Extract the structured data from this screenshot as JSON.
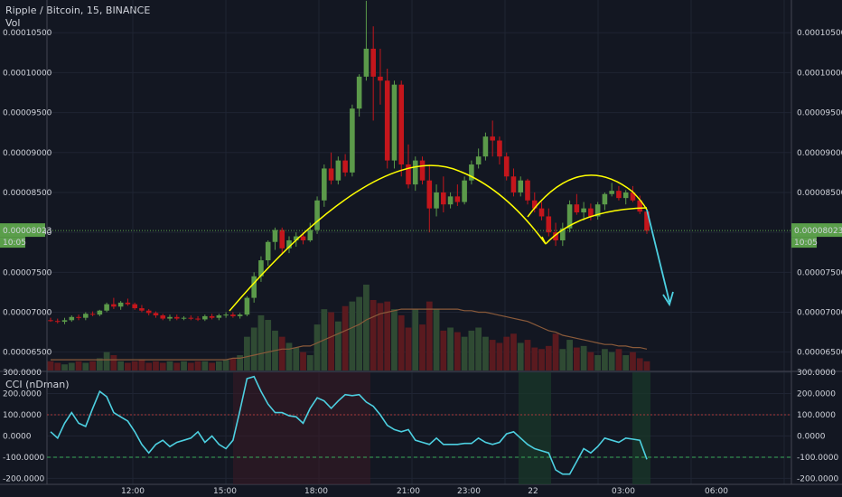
{
  "header": {
    "title": "Ripple / Bitcoin, 15, BINANCE",
    "volume_label": "Vol",
    "cci_label": "CCI (nDman)"
  },
  "price_axis": {
    "ticks": [
      "0.00010500",
      "0.00010000",
      "0.00009500",
      "0.00009000",
      "0.00008500",
      "0.00008000",
      "0.00007500",
      "0.00007000",
      "0.00006500"
    ],
    "tick_values": [
      0.000105,
      0.0001,
      9.5e-05,
      9e-05,
      8.5e-05,
      8e-05,
      7.5e-05,
      7e-05,
      6.5e-05
    ],
    "range": [
      6.27e-05,
      0.0001091
    ],
    "current_price": "0.00008023",
    "current_time": "10:05"
  },
  "cci_axis": {
    "ticks": [
      "300.0000",
      "200.0000",
      "100.0000",
      "0.0000",
      "-100.0000",
      "-200.0000"
    ],
    "tick_values": [
      300,
      200,
      100,
      0,
      -100,
      -200
    ],
    "range": [
      -228,
      300
    ],
    "levels": [
      100,
      -100
    ]
  },
  "time_axis": {
    "labels": [
      "12:00",
      "15:00",
      "18:00",
      "21:00",
      "23:00",
      "22",
      "03:00",
      "06:00"
    ]
  },
  "colors": {
    "up": "#5b9a4a",
    "down": "#c4161c",
    "pattern": "#ffff00",
    "arrow": "#4dd0e1",
    "cci": "#4dd0e1",
    "price_badge": "#5a9e4a"
  },
  "chart_data": {
    "type": "candlestick",
    "title": "Ripple / Bitcoin, 15, BINANCE",
    "candles": [
      [
        6.9e-05,
        6.93e-05,
        6.88e-05,
        6.89e-05
      ],
      [
        6.89e-05,
        6.92e-05,
        6.86e-05,
        6.88e-05
      ],
      [
        6.88e-05,
        6.93e-05,
        6.85e-05,
        6.9e-05
      ],
      [
        6.9e-05,
        6.96e-05,
        6.88e-05,
        6.94e-05
      ],
      [
        6.94e-05,
        6.97e-05,
        6.9e-05,
        6.93e-05
      ],
      [
        6.93e-05,
        7e-05,
        6.9e-05,
        6.98e-05
      ],
      [
        6.98e-05,
        7.01e-05,
        6.95e-05,
        6.97e-05
      ],
      [
        6.97e-05,
        7.03e-05,
        6.95e-05,
        7.02e-05
      ],
      [
        7.02e-05,
        7.12e-05,
        7e-05,
        7.1e-05
      ],
      [
        7.1e-05,
        7.18e-05,
        7.04e-05,
        7.07e-05
      ],
      [
        7.07e-05,
        7.14e-05,
        7.03e-05,
        7.12e-05
      ],
      [
        7.12e-05,
        7.17e-05,
        7.08e-05,
        7.1e-05
      ],
      [
        7.1e-05,
        7.12e-05,
        7.03e-05,
        7.05e-05
      ],
      [
        7.05e-05,
        7.09e-05,
        7e-05,
        7.02e-05
      ],
      [
        7.02e-05,
        7.04e-05,
        6.96e-05,
        6.99e-05
      ],
      [
        6.99e-05,
        7.01e-05,
        6.93e-05,
        6.96e-05
      ],
      [
        6.96e-05,
        6.98e-05,
        6.9e-05,
        6.92e-05
      ],
      [
        6.92e-05,
        6.97e-05,
        6.89e-05,
        6.94e-05
      ],
      [
        6.94e-05,
        6.97e-05,
        6.9e-05,
        6.92e-05
      ],
      [
        6.92e-05,
        6.95e-05,
        6.9e-05,
        6.93e-05
      ],
      [
        6.93e-05,
        6.96e-05,
        6.9e-05,
        6.92e-05
      ],
      [
        6.92e-05,
        6.95e-05,
        6.89e-05,
        6.91e-05
      ],
      [
        6.91e-05,
        6.97e-05,
        6.89e-05,
        6.95e-05
      ],
      [
        6.95e-05,
        6.98e-05,
        6.91e-05,
        6.93e-05
      ],
      [
        6.93e-05,
        6.98e-05,
        6.9e-05,
        6.96e-05
      ],
      [
        6.96e-05,
        7e-05,
        6.93e-05,
        6.97e-05
      ],
      [
        6.97e-05,
        7e-05,
        6.93e-05,
        6.95e-05
      ],
      [
        6.95e-05,
        6.99e-05,
        6.92e-05,
        6.97e-05
      ],
      [
        6.97e-05,
        7.2e-05,
        6.95e-05,
        7.18e-05
      ],
      [
        7.18e-05,
        7.5e-05,
        7.12e-05,
        7.45e-05
      ],
      [
        7.45e-05,
        7.7e-05,
        7.38e-05,
        7.65e-05
      ],
      [
        7.65e-05,
        7.9e-05,
        7.58e-05,
        7.88e-05
      ],
      [
        7.88e-05,
        8.06e-05,
        7.78e-05,
        8.03e-05
      ],
      [
        8.03e-05,
        8.06e-05,
        7.72e-05,
        7.8e-05
      ],
      [
        7.8e-05,
        7.95e-05,
        7.74e-05,
        7.9e-05
      ],
      [
        7.9e-05,
        8e-05,
        7.82e-05,
        7.95e-05
      ],
      [
        7.95e-05,
        8e-05,
        7.85e-05,
        7.9e-05
      ],
      [
        7.9e-05,
        8.12e-05,
        7.88e-05,
        8.03e-05
      ],
      [
        8.03e-05,
        8.45e-05,
        7.98e-05,
        8.4e-05
      ],
      [
        8.4e-05,
        8.85e-05,
        8.32e-05,
        8.8e-05
      ],
      [
        8.8e-05,
        9e-05,
        8.6e-05,
        8.65e-05
      ],
      [
        8.65e-05,
        8.95e-05,
        8.6e-05,
        8.9e-05
      ],
      [
        8.9e-05,
        8.98e-05,
        8.7e-05,
        8.75e-05
      ],
      [
        8.75e-05,
        9.6e-05,
        8.7e-05,
        9.55e-05
      ],
      [
        9.55e-05,
        9.98e-05,
        9.45e-05,
        9.95e-05
      ],
      [
        9.95e-05,
        0.000109,
        9.9e-05,
        0.000103
      ],
      [
        0.000103,
        0.0001058,
        9.4e-05,
        9.95e-05
      ],
      [
        9.95e-05,
        0.000103,
        9.6e-05,
        9.9e-05
      ],
      [
        9.9e-05,
        0.0001005,
        8.8e-05,
        8.9e-05
      ],
      [
        8.9e-05,
        9.9e-05,
        8.8e-05,
        9.85e-05
      ],
      [
        9.85e-05,
        9.9e-05,
        8.7e-05,
        8.85e-05
      ],
      [
        8.85e-05,
        9.1e-05,
        8.55e-05,
        8.6e-05
      ],
      [
        8.6e-05,
        8.95e-05,
        8.52e-05,
        8.9e-05
      ],
      [
        8.9e-05,
        8.95e-05,
        8.6e-05,
        8.65e-05
      ],
      [
        8.65e-05,
        8.85e-05,
        8e-05,
        8.3e-05
      ],
      [
        8.3e-05,
        8.6e-05,
        8.2e-05,
        8.5e-05
      ],
      [
        8.5e-05,
        8.7e-05,
        8.25e-05,
        8.35e-05
      ],
      [
        8.35e-05,
        8.5e-05,
        8.3e-05,
        8.45e-05
      ],
      [
        8.45e-05,
        8.6e-05,
        8.33e-05,
        8.38e-05
      ],
      [
        8.38e-05,
        8.7e-05,
        8.35e-05,
        8.65e-05
      ],
      [
        8.65e-05,
        8.9e-05,
        8.6e-05,
        8.85e-05
      ],
      [
        8.85e-05,
        9.05e-05,
        8.8e-05,
        8.95e-05
      ],
      [
        8.95e-05,
        9.25e-05,
        8.9e-05,
        9.2e-05
      ],
      [
        9.2e-05,
        9.4e-05,
        8.95e-05,
        9.15e-05
      ],
      [
        9.15e-05,
        9.2e-05,
        8.85e-05,
        8.95e-05
      ],
      [
        8.95e-05,
        9e-05,
        8.65e-05,
        8.7e-05
      ],
      [
        8.7e-05,
        8.8e-05,
        8.45e-05,
        8.5e-05
      ],
      [
        8.5e-05,
        8.7e-05,
        8.45e-05,
        8.65e-05
      ],
      [
        8.65e-05,
        8.67e-05,
        8.35e-05,
        8.4e-05
      ],
      [
        8.4e-05,
        8.5e-05,
        8.25e-05,
        8.3e-05
      ],
      [
        8.3e-05,
        8.38e-05,
        8.15e-05,
        8.2e-05
      ],
      [
        8.2e-05,
        8.3e-05,
        7.95e-05,
        8e-05
      ],
      [
        8e-05,
        8.12e-05,
        7.83e-05,
        7.9e-05
      ],
      [
        7.9e-05,
        8.12e-05,
        7.83e-05,
        8.05e-05
      ],
      [
        8.05e-05,
        8.4e-05,
        8e-05,
        8.35e-05
      ],
      [
        8.35e-05,
        8.48e-05,
        8.22e-05,
        8.25e-05
      ],
      [
        8.25e-05,
        8.38e-05,
        8.15e-05,
        8.3e-05
      ],
      [
        8.3e-05,
        8.36e-05,
        8.15e-05,
        8.2e-05
      ],
      [
        8.2e-05,
        8.38e-05,
        8.16e-05,
        8.35e-05
      ],
      [
        8.35e-05,
        8.5e-05,
        8.28e-05,
        8.48e-05
      ],
      [
        8.48e-05,
        8.62e-05,
        8.45e-05,
        8.52e-05
      ],
      [
        8.52e-05,
        8.58e-05,
        8.4e-05,
        8.43e-05
      ],
      [
        8.43e-05,
        8.53e-05,
        8.35e-05,
        8.5e-05
      ],
      [
        8.5e-05,
        8.58e-05,
        8.38e-05,
        8.4e-05
      ],
      [
        8.4e-05,
        8.46e-05,
        8.23e-05,
        8.26e-05
      ],
      [
        8.26e-05,
        8.3e-05,
        7.98e-05,
        8.02e-05
      ]
    ],
    "volume": [
      6,
      5,
      4,
      5,
      6,
      5,
      6,
      8,
      12,
      10,
      6,
      5,
      6,
      7,
      5,
      6,
      5,
      6,
      5,
      6,
      5,
      6,
      6,
      5,
      6,
      7,
      8,
      10,
      22,
      28,
      36,
      33,
      26,
      22,
      18,
      15,
      12,
      10,
      30,
      40,
      38,
      32,
      42,
      45,
      48,
      56,
      46,
      44,
      45,
      40,
      36,
      28,
      40,
      30,
      45,
      40,
      26,
      28,
      25,
      22,
      26,
      28,
      22,
      20,
      18,
      22,
      24,
      18,
      20,
      15,
      14,
      16,
      24,
      14,
      20,
      15,
      16,
      12,
      10,
      14,
      12,
      14,
      10,
      12,
      8,
      6
    ],
    "volume_ma": [
      7,
      7,
      7,
      7,
      7,
      7,
      7,
      7,
      7,
      7,
      7,
      7,
      7,
      7,
      7,
      7,
      7,
      7,
      7,
      7,
      7,
      7,
      7,
      7,
      7,
      7,
      8,
      8,
      9,
      10,
      11,
      12,
      13,
      14,
      14,
      15,
      16,
      16,
      18,
      20,
      22,
      24,
      26,
      28,
      30,
      33,
      35,
      37,
      38,
      39,
      40,
      40,
      40,
      40,
      40,
      40,
      40,
      40,
      40,
      39,
      39,
      38,
      38,
      37,
      36,
      35,
      34,
      33,
      32,
      30,
      28,
      26,
      25,
      23,
      22,
      21,
      20,
      19,
      18,
      17,
      17,
      16,
      16,
      15,
      15,
      14
    ],
    "cci": [
      20,
      -10,
      60,
      110,
      60,
      45,
      130,
      210,
      185,
      110,
      90,
      70,
      20,
      -40,
      -80,
      -40,
      -20,
      -50,
      -30,
      -20,
      -10,
      20,
      -30,
      0,
      -40,
      -60,
      -20,
      120,
      270,
      280,
      210,
      150,
      110,
      110,
      95,
      90,
      60,
      130,
      180,
      165,
      130,
      165,
      195,
      190,
      195,
      160,
      140,
      100,
      50,
      30,
      20,
      30,
      -20,
      -30,
      -40,
      -10,
      -40,
      -40,
      -40,
      -35,
      -35,
      -10,
      -30,
      -40,
      -30,
      10,
      20,
      -10,
      -40,
      -60,
      -70,
      -80,
      -160,
      -180,
      -180,
      -120,
      -60,
      -80,
      -50,
      -10,
      -20,
      -30,
      -10,
      -15,
      -20,
      -110
    ]
  }
}
